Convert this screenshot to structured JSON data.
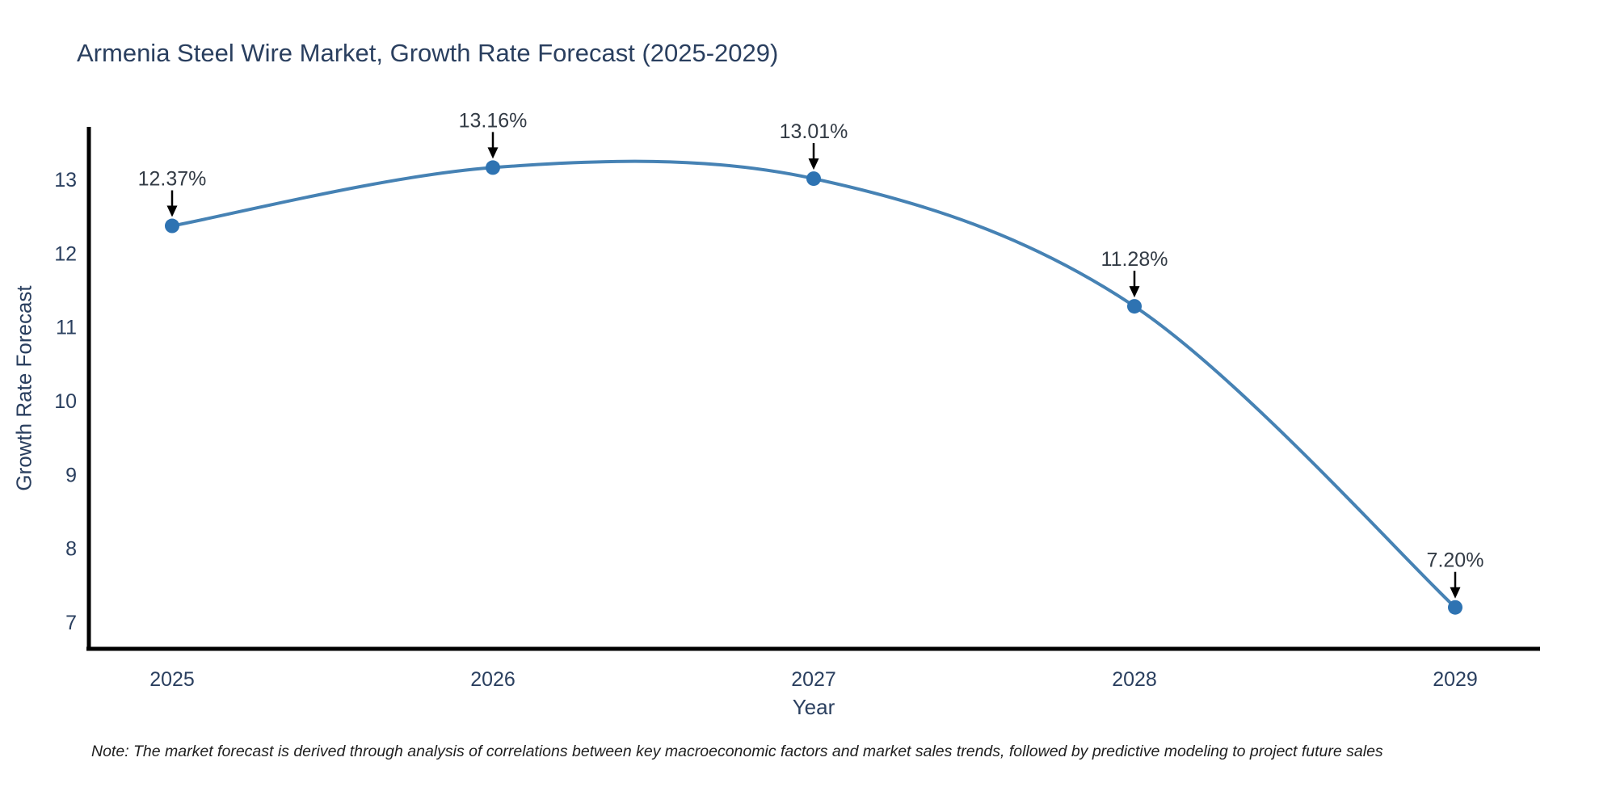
{
  "note": "Note: The market forecast is derived through analysis of correlations between key macroeconomic factors and market sales trends, followed by predictive modeling to project future sales",
  "chart_data": {
    "type": "line",
    "title": "Armenia Steel Wire Market, Growth Rate Forecast (2025-2029)",
    "xlabel": "Year",
    "ylabel": "Growth Rate Forecast",
    "categories": [
      "2025",
      "2026",
      "2027",
      "2028",
      "2029"
    ],
    "values": [
      12.37,
      13.16,
      13.01,
      11.28,
      7.2
    ],
    "point_labels": [
      "12.37%",
      "13.16%",
      "13.01%",
      "11.28%",
      "7.20%"
    ],
    "y_ticks": [
      7,
      8,
      9,
      10,
      11,
      12,
      13
    ],
    "ylim": [
      6.6,
      13.8
    ],
    "line_shape": "spline",
    "grid": false,
    "legend_position": "none",
    "colors": {
      "line": "#4682b4",
      "marker": "#2e73b2",
      "axis": "#000000",
      "tick_text": "#2a3f5f",
      "annotation_text": "#333b45",
      "arrow": "#000000"
    }
  }
}
